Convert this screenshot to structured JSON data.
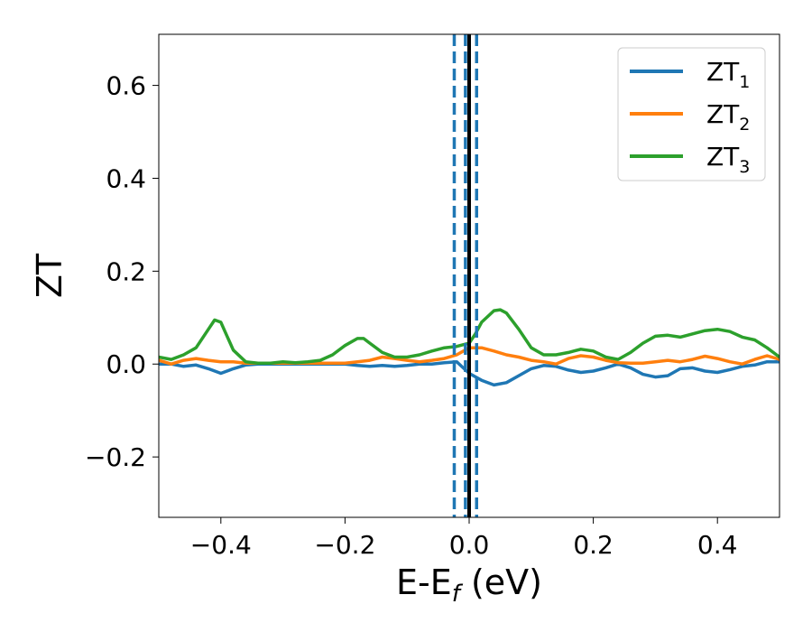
{
  "chart_data": {
    "type": "line",
    "xlabel": {
      "main": "E-E",
      "sub": "f",
      "unit": " (eV)"
    },
    "ylabel": "ZT",
    "xlim": [
      -0.5,
      0.5
    ],
    "ylim": [
      -0.33,
      0.71
    ],
    "xticks": [
      {
        "value": -0.4,
        "label": "−0.4"
      },
      {
        "value": -0.2,
        "label": "−0.2"
      },
      {
        "value": 0.0,
        "label": "0.0"
      },
      {
        "value": 0.2,
        "label": "0.2"
      },
      {
        "value": 0.4,
        "label": "0.4"
      }
    ],
    "yticks": [
      {
        "value": -0.2,
        "label": "−0.2"
      },
      {
        "value": 0.0,
        "label": "0.0"
      },
      {
        "value": 0.2,
        "label": "0.2"
      },
      {
        "value": 0.4,
        "label": "0.4"
      },
      {
        "value": 0.6,
        "label": "0.6"
      }
    ],
    "legend_position": "top-right",
    "grid": false,
    "vertical_lines": [
      {
        "x": -0.024,
        "style": "dashed",
        "color": "#1f77b4"
      },
      {
        "x": -0.006,
        "style": "dashed",
        "color": "#1f77b4"
      },
      {
        "x": 0.012,
        "style": "dashed",
        "color": "#1f77b4"
      },
      {
        "x": 0.0,
        "style": "solid",
        "color": "#000000"
      }
    ],
    "series": [
      {
        "name": "ZT",
        "sub": "1",
        "color": "#1f77b4",
        "points": [
          [
            -0.5,
            0.0
          ],
          [
            -0.48,
            0.0
          ],
          [
            -0.46,
            -0.005
          ],
          [
            -0.44,
            -0.002
          ],
          [
            -0.42,
            -0.01
          ],
          [
            -0.4,
            -0.02
          ],
          [
            -0.38,
            -0.01
          ],
          [
            -0.36,
            -0.002
          ],
          [
            -0.34,
            0.0
          ],
          [
            -0.3,
            0.0
          ],
          [
            -0.25,
            0.0
          ],
          [
            -0.2,
            0.0
          ],
          [
            -0.18,
            -0.003
          ],
          [
            -0.16,
            -0.005
          ],
          [
            -0.14,
            -0.003
          ],
          [
            -0.12,
            -0.005
          ],
          [
            -0.1,
            -0.003
          ],
          [
            -0.08,
            0.0
          ],
          [
            -0.06,
            0.0
          ],
          [
            -0.04,
            0.003
          ],
          [
            -0.02,
            0.005
          ],
          [
            0.0,
            -0.02
          ],
          [
            0.02,
            -0.035
          ],
          [
            0.04,
            -0.045
          ],
          [
            0.06,
            -0.04
          ],
          [
            0.08,
            -0.025
          ],
          [
            0.1,
            -0.01
          ],
          [
            0.12,
            -0.003
          ],
          [
            0.14,
            -0.005
          ],
          [
            0.16,
            -0.013
          ],
          [
            0.18,
            -0.018
          ],
          [
            0.2,
            -0.015
          ],
          [
            0.22,
            -0.008
          ],
          [
            0.24,
            0.0
          ],
          [
            0.26,
            -0.008
          ],
          [
            0.28,
            -0.022
          ],
          [
            0.3,
            -0.028
          ],
          [
            0.32,
            -0.025
          ],
          [
            0.34,
            -0.01
          ],
          [
            0.36,
            -0.008
          ],
          [
            0.38,
            -0.015
          ],
          [
            0.4,
            -0.018
          ],
          [
            0.42,
            -0.012
          ],
          [
            0.44,
            -0.005
          ],
          [
            0.46,
            -0.002
          ],
          [
            0.48,
            0.005
          ],
          [
            0.5,
            0.005
          ]
        ]
      },
      {
        "name": "ZT",
        "sub": "2",
        "color": "#ff7f0e",
        "points": [
          [
            -0.5,
            0.008
          ],
          [
            -0.48,
            0.0
          ],
          [
            -0.46,
            0.008
          ],
          [
            -0.44,
            0.012
          ],
          [
            -0.42,
            0.008
          ],
          [
            -0.4,
            0.005
          ],
          [
            -0.38,
            0.005
          ],
          [
            -0.36,
            0.002
          ],
          [
            -0.34,
            0.002
          ],
          [
            -0.3,
            0.002
          ],
          [
            -0.25,
            0.002
          ],
          [
            -0.2,
            0.002
          ],
          [
            -0.18,
            0.005
          ],
          [
            -0.16,
            0.008
          ],
          [
            -0.14,
            0.015
          ],
          [
            -0.12,
            0.012
          ],
          [
            -0.1,
            0.008
          ],
          [
            -0.08,
            0.005
          ],
          [
            -0.06,
            0.008
          ],
          [
            -0.04,
            0.012
          ],
          [
            -0.02,
            0.02
          ],
          [
            0.0,
            0.035
          ],
          [
            0.02,
            0.035
          ],
          [
            0.04,
            0.028
          ],
          [
            0.06,
            0.02
          ],
          [
            0.08,
            0.015
          ],
          [
            0.1,
            0.008
          ],
          [
            0.12,
            0.005
          ],
          [
            0.14,
            0.0
          ],
          [
            0.16,
            0.012
          ],
          [
            0.18,
            0.018
          ],
          [
            0.2,
            0.015
          ],
          [
            0.22,
            0.008
          ],
          [
            0.24,
            0.003
          ],
          [
            0.26,
            0.002
          ],
          [
            0.28,
            0.002
          ],
          [
            0.3,
            0.005
          ],
          [
            0.32,
            0.008
          ],
          [
            0.34,
            0.005
          ],
          [
            0.36,
            0.01
          ],
          [
            0.38,
            0.017
          ],
          [
            0.4,
            0.012
          ],
          [
            0.42,
            0.005
          ],
          [
            0.44,
            0.0
          ],
          [
            0.46,
            0.01
          ],
          [
            0.48,
            0.018
          ],
          [
            0.5,
            0.01
          ]
        ]
      },
      {
        "name": "ZT",
        "sub": "3",
        "color": "#2ca02c",
        "points": [
          [
            -0.5,
            0.015
          ],
          [
            -0.48,
            0.01
          ],
          [
            -0.46,
            0.02
          ],
          [
            -0.44,
            0.035
          ],
          [
            -0.42,
            0.075
          ],
          [
            -0.41,
            0.095
          ],
          [
            -0.4,
            0.09
          ],
          [
            -0.39,
            0.06
          ],
          [
            -0.38,
            0.03
          ],
          [
            -0.36,
            0.005
          ],
          [
            -0.34,
            0.002
          ],
          [
            -0.32,
            0.002
          ],
          [
            -0.3,
            0.005
          ],
          [
            -0.28,
            0.003
          ],
          [
            -0.26,
            0.005
          ],
          [
            -0.24,
            0.008
          ],
          [
            -0.22,
            0.02
          ],
          [
            -0.2,
            0.04
          ],
          [
            -0.18,
            0.055
          ],
          [
            -0.17,
            0.055
          ],
          [
            -0.16,
            0.045
          ],
          [
            -0.14,
            0.025
          ],
          [
            -0.12,
            0.015
          ],
          [
            -0.1,
            0.015
          ],
          [
            -0.08,
            0.02
          ],
          [
            -0.06,
            0.028
          ],
          [
            -0.04,
            0.035
          ],
          [
            -0.02,
            0.038
          ],
          [
            0.0,
            0.045
          ],
          [
            0.01,
            0.065
          ],
          [
            0.02,
            0.09
          ],
          [
            0.04,
            0.115
          ],
          [
            0.05,
            0.117
          ],
          [
            0.06,
            0.11
          ],
          [
            0.08,
            0.075
          ],
          [
            0.1,
            0.035
          ],
          [
            0.12,
            0.02
          ],
          [
            0.14,
            0.02
          ],
          [
            0.16,
            0.025
          ],
          [
            0.18,
            0.032
          ],
          [
            0.2,
            0.028
          ],
          [
            0.22,
            0.015
          ],
          [
            0.24,
            0.01
          ],
          [
            0.26,
            0.025
          ],
          [
            0.28,
            0.045
          ],
          [
            0.3,
            0.06
          ],
          [
            0.32,
            0.062
          ],
          [
            0.34,
            0.058
          ],
          [
            0.36,
            0.065
          ],
          [
            0.38,
            0.072
          ],
          [
            0.4,
            0.075
          ],
          [
            0.42,
            0.07
          ],
          [
            0.44,
            0.058
          ],
          [
            0.46,
            0.052
          ],
          [
            0.48,
            0.035
          ],
          [
            0.5,
            0.015
          ]
        ]
      }
    ]
  }
}
